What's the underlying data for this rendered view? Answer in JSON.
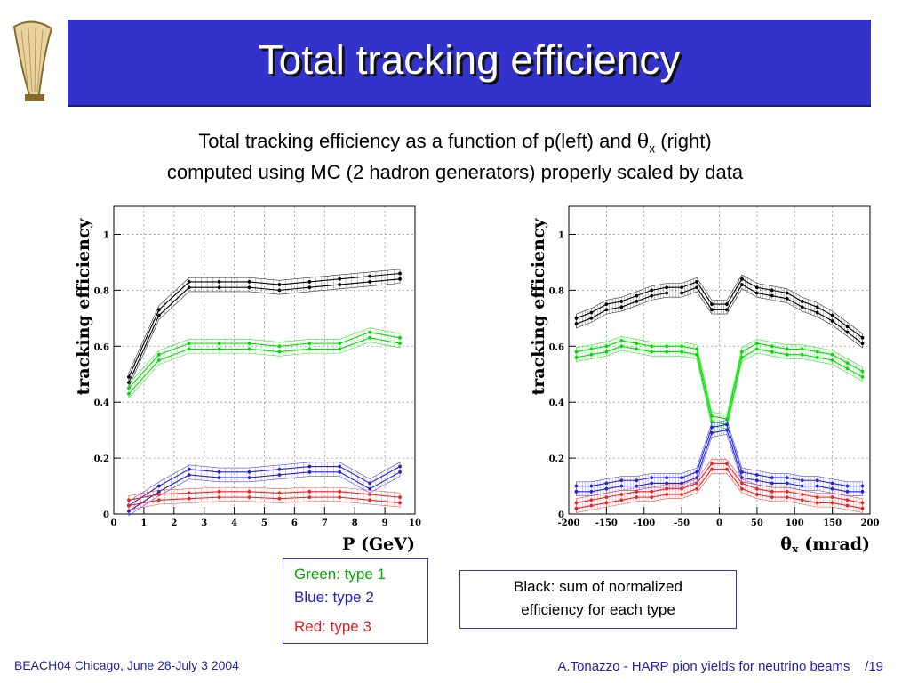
{
  "slide": {
    "title": "Total tracking efficiency",
    "subtitle_line1_pre": "Total tracking efficiency as a function of p(left) and ",
    "subtitle_line1_theta": "θ",
    "subtitle_line1_sub": "x",
    "subtitle_line1_post": " (right)",
    "subtitle_line2": "computed using MC (2 hadron generators) properly scaled by data"
  },
  "legend_types": {
    "green": "Green: type 1",
    "blue": "Blue: type 2",
    "red": "Red: type 3"
  },
  "legend_black": {
    "line1": "Black: sum of normalized",
    "line2": "efficiency for each type"
  },
  "footer": {
    "left": "BEACH04 Chicago, June 28-July 3 2004",
    "right": "A.Tonazzo - HARP pion yields for neutrino beams    /19"
  },
  "colors": {
    "title_bar": "#3333cc",
    "black": "#000000",
    "green": "#00dd00",
    "blue": "#2222dd",
    "red": "#ee2222"
  },
  "chart_data": [
    {
      "type": "line",
      "xlabel": "P (GeV)",
      "ylabel": "tracking efficiency",
      "xlim": [
        0,
        10
      ],
      "ylim": [
        0,
        1.1
      ],
      "xticks": [
        "0",
        "1",
        "2",
        "3",
        "4",
        "5",
        "6",
        "7",
        "8",
        "9",
        "10"
      ],
      "yticks": [
        "0",
        "0.2",
        "0.4",
        "0.6",
        "0.8",
        "1"
      ],
      "grid": true,
      "x": [
        0.5,
        1.5,
        2.5,
        3.5,
        4.5,
        5.5,
        6.5,
        7.5,
        8.5,
        9.5
      ],
      "series": [
        {
          "color": "#000000",
          "values": [
            0.48,
            0.72,
            0.82,
            0.82,
            0.82,
            0.81,
            0.82,
            0.83,
            0.84,
            0.85
          ]
        },
        {
          "color": "#00dd00",
          "values": [
            0.44,
            0.56,
            0.6,
            0.6,
            0.6,
            0.59,
            0.6,
            0.6,
            0.64,
            0.62
          ]
        },
        {
          "color": "#2222dd",
          "values": [
            0.02,
            0.09,
            0.15,
            0.14,
            0.14,
            0.15,
            0.16,
            0.16,
            0.1,
            0.16
          ]
        },
        {
          "color": "#ee2222",
          "values": [
            0.04,
            0.06,
            0.065,
            0.07,
            0.07,
            0.065,
            0.07,
            0.07,
            0.06,
            0.05
          ]
        }
      ]
    },
    {
      "type": "line",
      "xlabel_theta": "θ",
      "xlabel_sub": "x",
      "xlabel_rest": " (mrad)",
      "ylabel": "tracking efficiency",
      "xlim": [
        -200,
        200
      ],
      "ylim": [
        0,
        1.1
      ],
      "xticks": [
        "-200",
        "-150",
        "-100",
        "-50",
        "0",
        "50",
        "100",
        "150",
        "200"
      ],
      "yticks": [
        "0",
        "0.2",
        "0.4",
        "0.6",
        "0.8",
        "1"
      ],
      "grid": true,
      "x": [
        -190,
        -170,
        -150,
        -130,
        -110,
        -90,
        -70,
        -50,
        -30,
        -10,
        10,
        30,
        50,
        70,
        90,
        110,
        130,
        150,
        170,
        190
      ],
      "series": [
        {
          "color": "#000000",
          "values": [
            0.69,
            0.71,
            0.74,
            0.75,
            0.77,
            0.79,
            0.8,
            0.8,
            0.82,
            0.74,
            0.74,
            0.83,
            0.8,
            0.79,
            0.78,
            0.75,
            0.73,
            0.7,
            0.66,
            0.62
          ]
        },
        {
          "color": "#00dd00",
          "values": [
            0.57,
            0.58,
            0.59,
            0.61,
            0.6,
            0.59,
            0.59,
            0.59,
            0.58,
            0.34,
            0.33,
            0.57,
            0.6,
            0.59,
            0.58,
            0.58,
            0.57,
            0.56,
            0.53,
            0.5
          ]
        },
        {
          "color": "#2222dd",
          "values": [
            0.09,
            0.09,
            0.1,
            0.11,
            0.11,
            0.12,
            0.12,
            0.12,
            0.14,
            0.3,
            0.31,
            0.14,
            0.13,
            0.12,
            0.12,
            0.11,
            0.11,
            0.1,
            0.09,
            0.09
          ]
        },
        {
          "color": "#ee2222",
          "values": [
            0.03,
            0.04,
            0.05,
            0.06,
            0.07,
            0.07,
            0.08,
            0.08,
            0.1,
            0.17,
            0.17,
            0.1,
            0.08,
            0.07,
            0.07,
            0.06,
            0.05,
            0.05,
            0.04,
            0.03
          ]
        }
      ]
    }
  ]
}
